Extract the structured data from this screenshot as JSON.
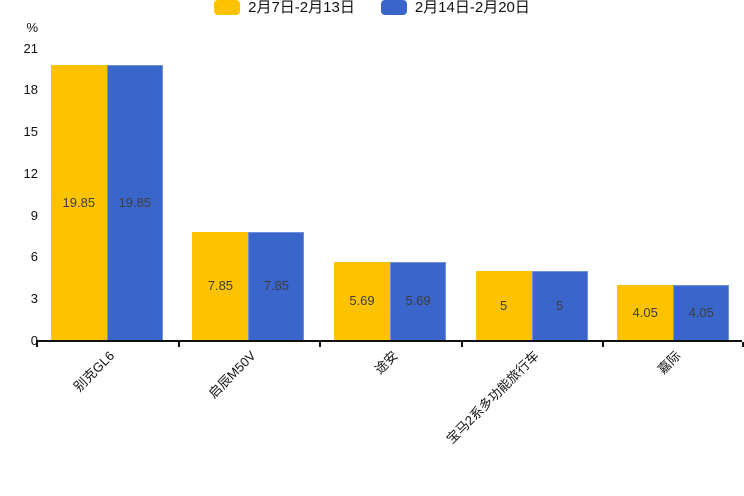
{
  "legend": {
    "items": [
      {
        "label": "2月7日-2月13日",
        "color": "#FDC300"
      },
      {
        "label": "2月14日-2月20日",
        "color": "#3A66CB"
      }
    ]
  },
  "y_axis": {
    "unit": "%",
    "ticks": [
      0,
      3,
      6,
      9,
      12,
      15,
      18,
      21
    ]
  },
  "chart_data": {
    "type": "bar",
    "categories": [
      "别克GL6",
      "启辰M50V",
      "途安",
      "宝马2系多功能旅行车",
      "嘉际"
    ],
    "series": [
      {
        "name": "2月7日-2月13日",
        "color": "#FDC300",
        "values": [
          19.85,
          7.85,
          5.69,
          5,
          4.05
        ]
      },
      {
        "name": "2月14日-2月20日",
        "color": "#3A66CB",
        "values": [
          19.85,
          7.85,
          5.69,
          5,
          4.05
        ]
      }
    ],
    "title": "",
    "xlabel": "",
    "ylabel": "%",
    "ylim": [
      0,
      21
    ],
    "grid": false,
    "legend_position": "top",
    "value_labels": "inside-center",
    "x_label_rotation": 45
  },
  "colors": {
    "background": "#ffffff",
    "axis": "#111111",
    "value_label": "#3d3d3d"
  }
}
